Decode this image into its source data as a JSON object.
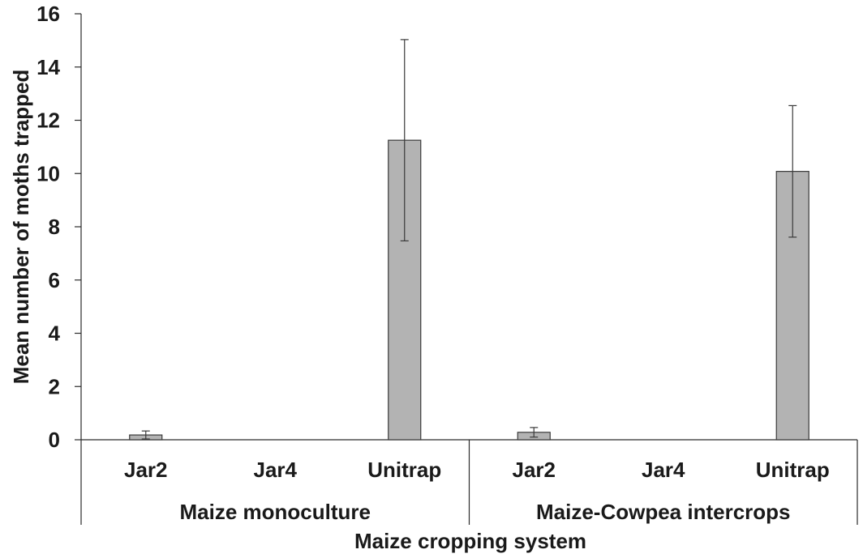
{
  "chart_data": {
    "type": "bar",
    "ylabel": "Mean number of moths trapped",
    "xlabel": "Maize cropping system",
    "ylim": [
      0,
      16
    ],
    "yticks": [
      0,
      2,
      4,
      6,
      8,
      10,
      12,
      14,
      16
    ],
    "grid": false,
    "legend": "none",
    "bar_color": "#b3b3b3",
    "groups": [
      {
        "label": "Maize monoculture",
        "categories": [
          "Jar2",
          "Jar4",
          "Unitrap"
        ],
        "values": [
          0.18,
          0,
          11.25
        ],
        "errors": [
          0.15,
          0,
          3.78
        ]
      },
      {
        "label": "Maize-Cowpea intercrops",
        "categories": [
          "Jar2",
          "Jar4",
          "Unitrap"
        ],
        "values": [
          0.28,
          0,
          10.08
        ],
        "errors": [
          0.18,
          0,
          2.47
        ]
      }
    ]
  }
}
